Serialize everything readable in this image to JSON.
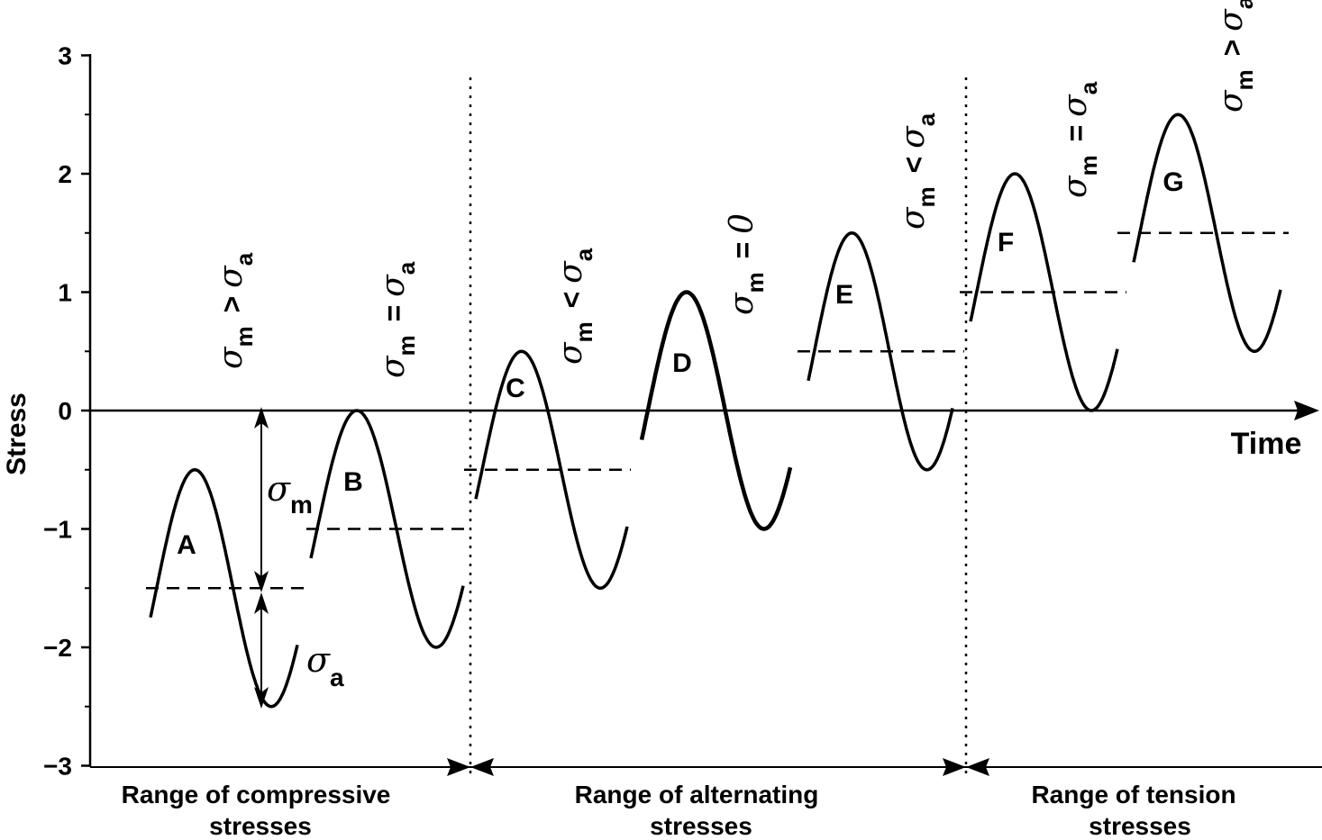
{
  "axes": {
    "y_label": "Stress",
    "x_label": "Time",
    "y_ticks": [
      "3",
      "2",
      "1",
      "0",
      "−1",
      "−2",
      "−3"
    ]
  },
  "cycles": [
    {
      "label": "A",
      "mean": -1.5,
      "amplitude": 1.0,
      "condition": {
        "sigma": "σ",
        "sub": "m",
        "op": ">",
        "sigma2": "σ",
        "sub2": "a"
      }
    },
    {
      "label": "B",
      "mean": -1.0,
      "amplitude": 1.0,
      "condition": {
        "sigma": "σ",
        "sub": "m",
        "op": "=",
        "sigma2": "σ",
        "sub2": "a"
      }
    },
    {
      "label": "C",
      "mean": -0.5,
      "amplitude": 1.0,
      "condition": {
        "sigma": "σ",
        "sub": "m",
        "op": "<",
        "sigma2": "σ",
        "sub2": "a"
      }
    },
    {
      "label": "D",
      "mean": 0.0,
      "amplitude": 1.0,
      "condition": {
        "sigma": "σ",
        "sub": "m",
        "op": "=",
        "rhs": "0"
      }
    },
    {
      "label": "E",
      "mean": 0.5,
      "amplitude": 1.0,
      "condition": {
        "sigma": "σ",
        "sub": "m",
        "op": "<",
        "sigma2": "σ",
        "sub2": "a"
      }
    },
    {
      "label": "F",
      "mean": 1.0,
      "amplitude": 1.0,
      "condition": {
        "sigma": "σ",
        "sub": "m",
        "op": "=",
        "sigma2": "σ",
        "sub2": "a"
      }
    },
    {
      "label": "G",
      "mean": 1.5,
      "amplitude": 1.0,
      "condition": {
        "sigma": "σ",
        "sub": "m",
        "op": ">",
        "sigma2": "σ",
        "sub2": "a"
      }
    }
  ],
  "annotations": {
    "sigma_m": {
      "sigma": "σ",
      "sub": "m"
    },
    "sigma_a": {
      "sigma": "σ",
      "sub": "a"
    }
  },
  "ranges": [
    {
      "line1": "Range of compressive",
      "line2": "stresses"
    },
    {
      "line1": "Range of alternating",
      "line2": "stresses"
    },
    {
      "line1": "Range of tension",
      "line2": "stresses"
    }
  ]
}
